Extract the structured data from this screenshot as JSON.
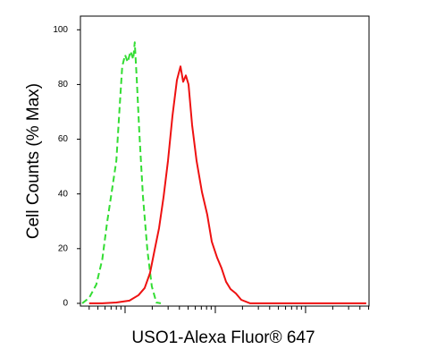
{
  "chart_data": {
    "type": "line",
    "xlabel": "USO1-Alexa Fluor® 647",
    "ylabel": "Cell Counts (% Max)",
    "xscale": "log",
    "xlim": [
      3.2,
      5050
    ],
    "ylim": [
      -1,
      105
    ],
    "xticks": [
      10,
      100,
      1000
    ],
    "xminorticks": [
      4,
      5,
      6,
      7,
      8,
      9,
      20,
      30,
      40,
      50,
      60,
      70,
      80,
      90,
      200,
      300,
      400,
      500,
      600,
      700,
      800,
      900,
      2000,
      3000,
      4000,
      5000
    ],
    "yticks": [
      0,
      20,
      40,
      60,
      80,
      100
    ],
    "series": [
      {
        "color": "#33dd33",
        "style": "dashed",
        "x": [
          3.35,
          4.0,
          4.8,
          5.6,
          6.3,
          7.1,
          8.0,
          8.7,
          9.3,
          10,
          10.7,
          11.5,
          12.3,
          12.8,
          13.5,
          14.4,
          15.8,
          17.7,
          19.8,
          22.2,
          24.9
        ],
        "values": [
          0,
          2.0,
          6.9,
          16.1,
          29.2,
          40.7,
          52.1,
          71.8,
          86.6,
          90.8,
          88.2,
          92.1,
          89.2,
          95.4,
          81.6,
          62.0,
          39.0,
          19.3,
          6.2,
          0.3,
          0
        ]
      },
      {
        "color": "#ee1111",
        "style": "solid",
        "x": [
          4.0,
          5.6,
          8.0,
          11.2,
          14.1,
          16.5,
          18.9,
          21.2,
          23.8,
          26.7,
          29.9,
          33.5,
          37.5,
          41.1,
          44.0,
          47.1,
          50.5,
          55.3,
          62.0,
          71.0,
          81.4,
          91.3,
          104.7,
          117.3,
          131.5,
          147.3,
          169.0,
          193.8,
          243.4,
          383.7,
          4710
        ],
        "values": [
          0,
          0,
          0.3,
          1.0,
          3.0,
          5.6,
          11.1,
          19.3,
          27.5,
          39.0,
          52.1,
          68.5,
          81.6,
          86.6,
          81.0,
          83.3,
          80.0,
          65.2,
          52.1,
          40.7,
          32.5,
          22.6,
          16.7,
          12.8,
          7.9,
          5.2,
          3.6,
          1.3,
          0,
          0,
          0
        ]
      }
    ]
  }
}
